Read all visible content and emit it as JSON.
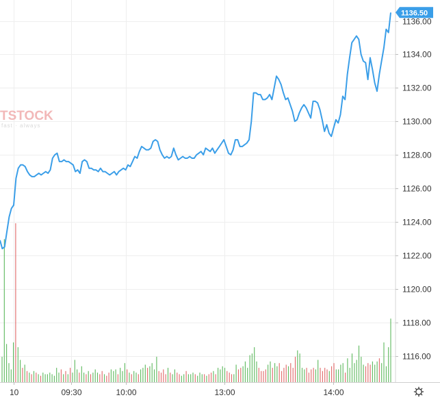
{
  "watermark": {
    "brand": "TSTOCK",
    "tagline": "fast · always"
  },
  "settings_icon": "gear-icon",
  "colors": {
    "line": "#3a9ee8",
    "volume_up": "#5cb85c",
    "volume_down": "#e06666",
    "grid": "#eeeeee",
    "last_label_bg": "#3a9ee8"
  },
  "chart_data": {
    "type": "line",
    "title": "",
    "xlabel": "",
    "ylabel": "",
    "ylim": [
      1114.8,
      1137.0
    ],
    "y_ticks": [
      "1116.00",
      "1118.00",
      "1120.00",
      "1122.00",
      "1124.00",
      "1126.00",
      "1128.00",
      "1130.00",
      "1132.00",
      "1134.00",
      "1136.00"
    ],
    "x_ticks": [
      "10",
      "09:30",
      "10:00",
      "13:00",
      "14:00"
    ],
    "last_price": "1136.50",
    "grid": true,
    "series": [
      {
        "values": [
          1122.9,
          1122.4,
          1122.5,
          1123.4,
          1124.3,
          1124.8,
          1125.0,
          1126.6,
          1127.2,
          1127.4,
          1127.4,
          1127.3,
          1127.0,
          1126.8,
          1126.7,
          1126.7,
          1126.8,
          1126.9,
          1126.8,
          1126.9,
          1127.0,
          1126.9,
          1127.1,
          1127.8,
          1128.0,
          1128.1,
          1127.6,
          1127.6,
          1127.7,
          1127.6,
          1127.6,
          1127.5,
          1127.4,
          1127.0,
          1127.1,
          1126.9,
          1127.6,
          1127.7,
          1127.6,
          1127.2,
          1127.2,
          1127.1,
          1127.1,
          1127.0,
          1127.2,
          1127.0,
          1127.0,
          1126.9,
          1126.8,
          1126.9,
          1127.0,
          1126.8,
          1127.0,
          1127.1,
          1127.2,
          1127.1,
          1127.4,
          1127.3,
          1127.6,
          1127.9,
          1127.8,
          1128.2,
          1128.5,
          1128.4,
          1128.3,
          1128.3,
          1128.4,
          1128.8,
          1128.9,
          1128.8,
          1128.3,
          1128.0,
          1127.8,
          1127.9,
          1127.8,
          1127.9,
          1128.4,
          1128.0,
          1127.7,
          1127.8,
          1127.9,
          1127.8,
          1127.8,
          1127.9,
          1127.8,
          1127.8,
          1128.0,
          1128.1,
          1128.2,
          1128.0,
          1128.4,
          1128.3,
          1128.2,
          1128.4,
          1128.1,
          1128.3,
          1128.5,
          1128.7,
          1128.9,
          1128.5,
          1128.1,
          1128.0,
          1128.3,
          1128.9,
          1128.9,
          1128.5,
          1128.5,
          1128.6,
          1128.7,
          1128.9,
          1130.0,
          1131.7,
          1131.7,
          1131.6,
          1131.6,
          1131.3,
          1131.3,
          1131.4,
          1131.6,
          1131.3,
          1132.0,
          1132.7,
          1132.5,
          1132.2,
          1131.7,
          1131.3,
          1131.4,
          1131.0,
          1130.6,
          1130.0,
          1130.1,
          1130.5,
          1130.8,
          1131.0,
          1130.8,
          1130.5,
          1130.2,
          1131.2,
          1131.2,
          1131.1,
          1130.7,
          1130.1,
          1129.4,
          1129.8,
          1129.3,
          1129.1,
          1129.6,
          1130.1,
          1129.9,
          1130.4,
          1131.5,
          1131.3,
          1132.8,
          1133.8,
          1134.7,
          1134.9,
          1135.1,
          1134.9,
          1134.0,
          1133.6,
          1133.5,
          1132.5,
          1133.8,
          1133.1,
          1132.3,
          1131.8,
          1132.8,
          1133.6,
          1134.4,
          1135.5,
          1135.3,
          1136.5
        ]
      }
    ],
    "volume": {
      "ylim": [
        0,
        100
      ],
      "up": [
        true,
        true,
        true,
        true,
        true,
        true,
        false,
        true,
        true,
        false,
        true,
        false,
        true,
        false,
        true,
        false,
        true,
        false,
        true,
        true,
        true,
        true,
        true,
        true,
        true,
        true,
        false,
        true,
        false,
        true,
        false,
        true,
        true,
        true,
        false,
        true,
        true,
        false,
        true,
        false,
        true,
        true,
        true,
        false,
        false,
        true,
        false,
        false,
        true,
        true,
        true,
        false,
        true,
        true,
        true,
        false,
        true,
        false,
        true,
        true,
        false,
        true,
        true,
        true,
        false,
        true,
        true,
        true,
        true,
        false,
        false,
        false,
        false,
        true,
        false,
        true,
        true,
        false,
        false,
        true,
        true,
        false,
        true,
        true,
        true,
        false,
        true,
        true,
        true,
        false,
        true,
        false,
        false,
        true,
        false,
        true,
        true,
        true,
        true,
        false,
        false,
        false,
        true,
        true,
        false,
        false,
        true,
        true,
        true,
        true,
        true,
        true,
        true,
        false,
        false,
        false,
        false,
        true,
        true,
        false,
        true,
        true,
        false,
        false,
        false,
        false,
        true,
        false,
        false,
        false,
        true,
        true,
        true,
        true,
        false,
        false,
        false,
        false,
        true,
        true,
        false,
        false,
        false,
        false,
        true,
        false,
        false,
        true,
        true,
        true,
        true,
        false,
        true,
        true,
        true,
        true,
        true,
        true,
        true,
        true,
        false,
        false,
        false,
        true,
        true,
        true,
        false,
        true,
        true,
        true,
        true,
        true
      ],
      "values": [
        16,
        90,
        24,
        12,
        8,
        25,
        100,
        22,
        14,
        9,
        11,
        7,
        6,
        5,
        7,
        6,
        5,
        4,
        6,
        5,
        5,
        6,
        5,
        4,
        9,
        6,
        8,
        5,
        7,
        5,
        9,
        6,
        14,
        8,
        6,
        10,
        6,
        5,
        7,
        5,
        6,
        8,
        6,
        5,
        7,
        5,
        4,
        6,
        8,
        7,
        8,
        5,
        9,
        7,
        12,
        8,
        6,
        5,
        7,
        6,
        5,
        8,
        9,
        11,
        9,
        10,
        12,
        8,
        16,
        7,
        6,
        8,
        5,
        9,
        6,
        5,
        8,
        6,
        5,
        4,
        5,
        7,
        5,
        5,
        6,
        5,
        4,
        6,
        5,
        5,
        4,
        5,
        6,
        7,
        5,
        9,
        8,
        10,
        9,
        7,
        6,
        5,
        5,
        11,
        8,
        9,
        10,
        13,
        9,
        17,
        18,
        22,
        13,
        9,
        7,
        7,
        8,
        11,
        13,
        9,
        12,
        10,
        12,
        7,
        9,
        11,
        10,
        12,
        9,
        16,
        20,
        18,
        9,
        8,
        9,
        6,
        8,
        9,
        8,
        14,
        9,
        7,
        9,
        8,
        7,
        10,
        12,
        8,
        8,
        11,
        12,
        6,
        15,
        9,
        18,
        12,
        14,
        23,
        16,
        11,
        10,
        12,
        11,
        13,
        11,
        13,
        15,
        12,
        25,
        10,
        22,
        40
      ]
    }
  }
}
